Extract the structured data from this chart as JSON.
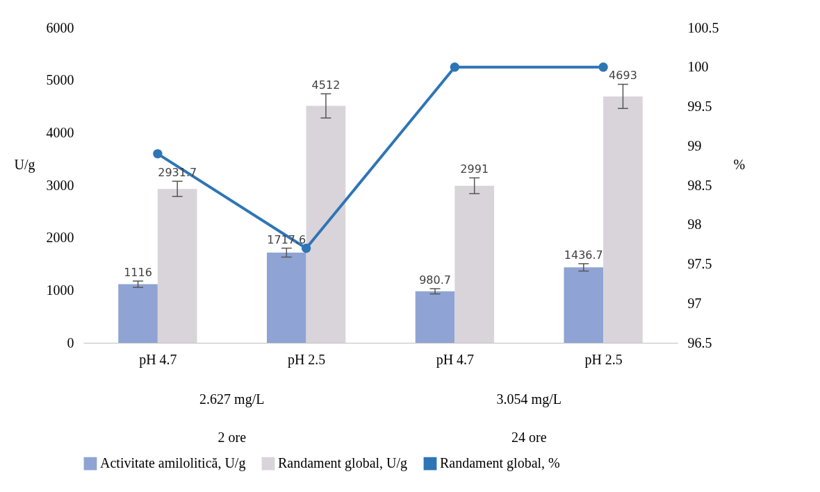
{
  "chart_data": {
    "type": "bar",
    "categories": [
      "pH 4.7",
      "pH 2.5",
      "pH 4.7",
      "pH 2.5"
    ],
    "ylabel": "U/g",
    "y2label": "%",
    "series": [
      {
        "name": "Activitate amilolitică, U/g",
        "color": "#8fa4d4",
        "values": [
          1116,
          1717.6,
          980.7,
          1436.7
        ],
        "value_labels": [
          "1116",
          "1717.6",
          "980.7",
          "1436.7"
        ],
        "errors": [
          60,
          85,
          50,
          70
        ]
      },
      {
        "name": "Randament global, U/g",
        "color": "#d9d4da",
        "values": [
          2931.7,
          4512,
          2991,
          4693
        ],
        "value_labels": [
          "2931.7",
          "4512",
          "2991",
          "4693"
        ],
        "errors": [
          145,
          230,
          150,
          230
        ]
      },
      {
        "name": "Randament global, %",
        "type": "line",
        "axis": "y2",
        "color": "#2e75b6",
        "values": [
          98.9,
          97.7,
          100,
          100
        ]
      }
    ],
    "ylim": [
      0,
      6000
    ],
    "yticks": [
      0,
      1000,
      2000,
      3000,
      4000,
      5000,
      6000
    ],
    "y2lim": [
      96.5,
      100.5
    ],
    "y2ticks": [
      96.5,
      97,
      97.5,
      98,
      98.5,
      99,
      99.5,
      100,
      100.5
    ],
    "annotations": [
      "2.627 mg/L",
      "3.054 mg/L",
      "2 ore",
      "24 ore"
    ],
    "legend": "bottom",
    "marker": "circle",
    "grid": false
  }
}
